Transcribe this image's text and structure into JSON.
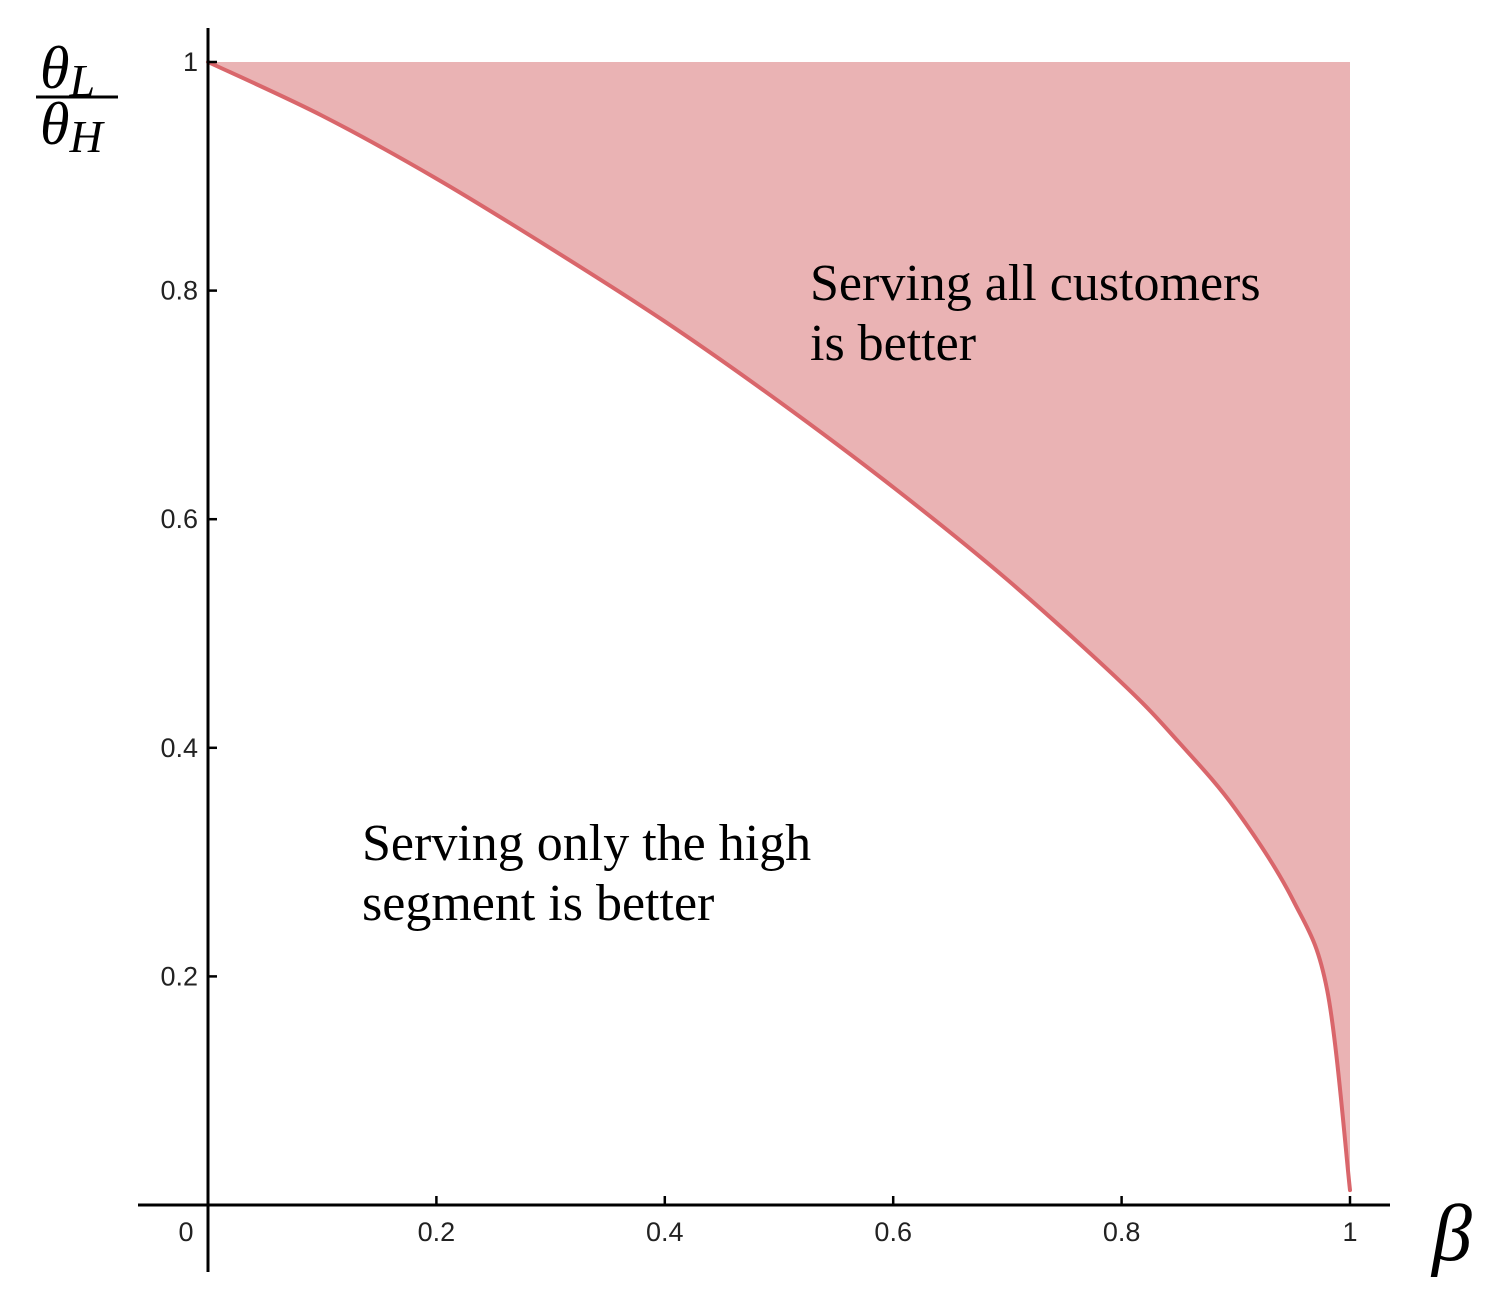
{
  "chart_data": {
    "type": "area",
    "title": "",
    "xlabel": "β",
    "ylabel": {
      "numerator": "θ",
      "numerator_sub": "L",
      "denominator": "θ",
      "denominator_sub": "H"
    },
    "xlim": [
      0,
      1
    ],
    "ylim": [
      0,
      1
    ],
    "x_ticks": [
      {
        "value": 0,
        "label": "0"
      },
      {
        "value": 0.2,
        "label": "0.2"
      },
      {
        "value": 0.4,
        "label": "0.4"
      },
      {
        "value": 0.6,
        "label": "0.6"
      },
      {
        "value": 0.8,
        "label": "0.8"
      },
      {
        "value": 1,
        "label": "1"
      }
    ],
    "y_ticks": [
      {
        "value": 0.2,
        "label": "0.2"
      },
      {
        "value": 0.4,
        "label": "0.4"
      },
      {
        "value": 0.6,
        "label": "0.6"
      },
      {
        "value": 0.8,
        "label": "0.8"
      },
      {
        "value": 1,
        "label": "1"
      }
    ],
    "grid": false,
    "boundary_curve": {
      "x": [
        0,
        0.1,
        0.2,
        0.3,
        0.4,
        0.5,
        0.6,
        0.7,
        0.8,
        0.85,
        0.9,
        0.95,
        0.98,
        1.0
      ],
      "y": [
        1.0,
        0.953,
        0.898,
        0.837,
        0.773,
        0.703,
        0.628,
        0.547,
        0.457,
        0.405,
        0.346,
        0.267,
        0.188,
        0.013
      ]
    },
    "shaded_region": {
      "lower": "boundary_curve",
      "upper": 1,
      "x_range": [
        0,
        1
      ]
    },
    "colors": {
      "fill": "#eab3b4",
      "curve": "#d9666b",
      "axis": "#000000"
    },
    "annotations": [
      {
        "id": "upper",
        "lines": [
          "Serving all customers",
          "is better"
        ]
      },
      {
        "id": "lower",
        "lines": [
          "Serving only the high",
          "segment is better"
        ]
      }
    ]
  }
}
